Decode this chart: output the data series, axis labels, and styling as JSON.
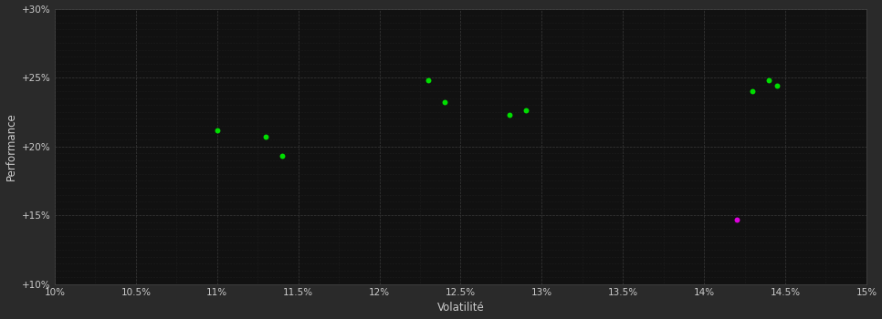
{
  "background_color": "#2a2a2a",
  "plot_bg_color": "#111111",
  "grid_color": "#444444",
  "text_color": "#cccccc",
  "xlabel": "Volatilité",
  "ylabel": "Performance",
  "xlim": [
    0.1,
    0.15
  ],
  "ylim": [
    0.1,
    0.3
  ],
  "xticks": [
    0.1,
    0.105,
    0.11,
    0.115,
    0.12,
    0.125,
    0.13,
    0.135,
    0.14,
    0.145,
    0.15
  ],
  "yticks": [
    0.1,
    0.15,
    0.2,
    0.25,
    0.3
  ],
  "green_points": [
    [
      0.11,
      0.212
    ],
    [
      0.113,
      0.207
    ],
    [
      0.114,
      0.193
    ],
    [
      0.123,
      0.248
    ],
    [
      0.124,
      0.232
    ],
    [
      0.128,
      0.223
    ],
    [
      0.129,
      0.226
    ],
    [
      0.143,
      0.24
    ],
    [
      0.144,
      0.248
    ],
    [
      0.1445,
      0.244
    ]
  ],
  "magenta_points": [
    [
      0.142,
      0.147
    ]
  ],
  "point_size": 18,
  "marker": "o",
  "minor_ytick_step": 0.005,
  "minor_xtick_step": 0.0025
}
